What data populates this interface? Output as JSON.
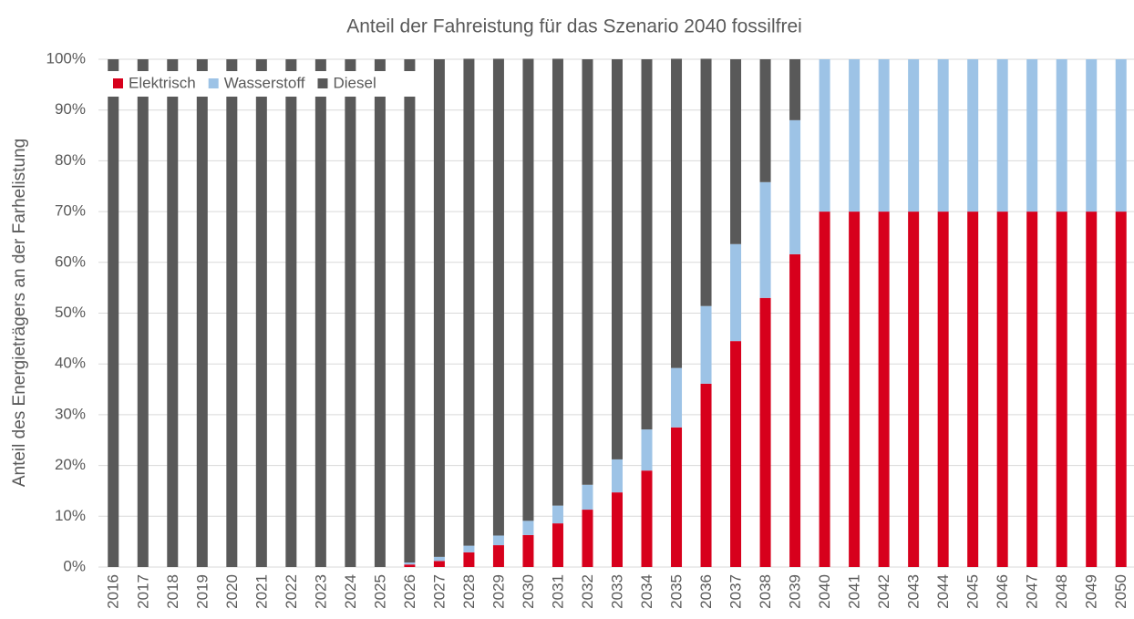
{
  "chart_data": {
    "type": "stacked_bar",
    "title": "Anteil der Fahreistung für das Szenario 2040 fossilfrei",
    "y_label": "Anteil des Energieträgers an der Farhelistung",
    "categories": [
      "2016",
      "2017",
      "2018",
      "2019",
      "2020",
      "2021",
      "2022",
      "2023",
      "2024",
      "2025",
      "2026",
      "2027",
      "2028",
      "2029",
      "2030",
      "2031",
      "2032",
      "2033",
      "2034",
      "2035",
      "2036",
      "2037",
      "2038",
      "2039",
      "2040",
      "2041",
      "2042",
      "2043",
      "2044",
      "2045",
      "2046",
      "2047",
      "2048",
      "2049",
      "2050"
    ],
    "series": [
      {
        "name": "Elektrisch",
        "color": "#d7001c",
        "values": [
          0,
          0,
          0,
          0,
          0,
          0,
          0,
          0,
          0,
          0,
          0.5,
          1.2,
          2.9,
          4.3,
          6.3,
          8.6,
          11.3,
          14.7,
          19,
          27.5,
          36.1,
          44.5,
          53,
          61.6,
          70,
          70,
          70,
          70,
          70,
          70,
          70,
          70,
          70,
          70,
          70
        ]
      },
      {
        "name": "Wasserstoff",
        "color": "#9dc3e6",
        "values": [
          0,
          0,
          0,
          0,
          0,
          0,
          0,
          0,
          0,
          0,
          0.4,
          0.8,
          1.3,
          1.9,
          2.8,
          3.5,
          4.9,
          6.5,
          8.1,
          11.7,
          15.3,
          19.1,
          22.8,
          26.4,
          30,
          30,
          30,
          30,
          30,
          30,
          30,
          30,
          30,
          30,
          30
        ]
      },
      {
        "name": "Diesel",
        "color": "#595959",
        "values": [
          100,
          100,
          100,
          100,
          100,
          100,
          100,
          100,
          100,
          100,
          99.1,
          98,
          95.9,
          93.9,
          91,
          88,
          83.8,
          78.8,
          72.9,
          60.9,
          48.7,
          36.4,
          24.2,
          12,
          0,
          0,
          0,
          0,
          0,
          0,
          0,
          0,
          0,
          0,
          0
        ]
      }
    ],
    "ylim": [
      0,
      100
    ],
    "yticks": [
      {
        "value": 0,
        "label": "0%"
      },
      {
        "value": 10,
        "label": "10%"
      },
      {
        "value": 20,
        "label": "20%"
      },
      {
        "value": 30,
        "label": "30%"
      },
      {
        "value": 40,
        "label": "40%"
      },
      {
        "value": 50,
        "label": "50%"
      },
      {
        "value": 60,
        "label": "60%"
      },
      {
        "value": 70,
        "label": "70%"
      },
      {
        "value": 80,
        "label": "80%"
      },
      {
        "value": 90,
        "label": "90%"
      },
      {
        "value": 100,
        "label": "100%"
      }
    ],
    "grid": true,
    "legend": "top-left"
  }
}
